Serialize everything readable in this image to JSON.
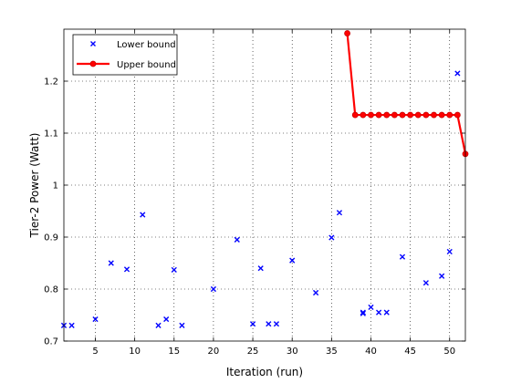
{
  "chart_data": {
    "type": "scatter",
    "title": "",
    "xlabel": "Iteration (run)",
    "ylabel": "Tier-2 Power (Watt)",
    "xlim": [
      1,
      52
    ],
    "ylim": [
      0.7,
      1.3
    ],
    "xticks": [
      5,
      10,
      15,
      20,
      25,
      30,
      35,
      40,
      45,
      50
    ],
    "yticks": [
      0.7,
      0.8,
      0.9,
      1,
      1.1,
      1.2
    ],
    "grid": true,
    "legend_position": "top-left",
    "series": [
      {
        "name": "Lower bound",
        "marker": "x",
        "color": "#0000ff",
        "points": [
          [
            1,
            0.73
          ],
          [
            2,
            0.73
          ],
          [
            5,
            0.742
          ],
          [
            7,
            0.85
          ],
          [
            9,
            0.838
          ],
          [
            11,
            0.943
          ],
          [
            13,
            0.73
          ],
          [
            14,
            0.742
          ],
          [
            15,
            0.837
          ],
          [
            16,
            0.73
          ],
          [
            20,
            0.8
          ],
          [
            23,
            0.895
          ],
          [
            25,
            0.733
          ],
          [
            26,
            0.84
          ],
          [
            27,
            0.733
          ],
          [
            28,
            0.733
          ],
          [
            30,
            0.855
          ],
          [
            33,
            0.793
          ],
          [
            35,
            0.899
          ],
          [
            36,
            0.947
          ],
          [
            39,
            0.753
          ],
          [
            39,
            0.755
          ],
          [
            40,
            0.765
          ],
          [
            41,
            0.755
          ],
          [
            42,
            0.755
          ],
          [
            44,
            0.862
          ],
          [
            47,
            0.812
          ],
          [
            49,
            0.825
          ],
          [
            50,
            0.872
          ],
          [
            51,
            1.215
          ]
        ]
      },
      {
        "name": "Upper bound",
        "marker": "o",
        "color": "#ff0000",
        "points": [
          [
            37,
            1.292
          ],
          [
            38,
            1.135
          ],
          [
            39,
            1.135
          ],
          [
            40,
            1.135
          ],
          [
            41,
            1.135
          ],
          [
            42,
            1.135
          ],
          [
            43,
            1.135
          ],
          [
            44,
            1.135
          ],
          [
            45,
            1.135
          ],
          [
            46,
            1.135
          ],
          [
            47,
            1.135
          ],
          [
            48,
            1.135
          ],
          [
            49,
            1.135
          ],
          [
            50,
            1.135
          ],
          [
            51,
            1.135
          ],
          [
            52,
            1.06
          ]
        ]
      }
    ]
  }
}
